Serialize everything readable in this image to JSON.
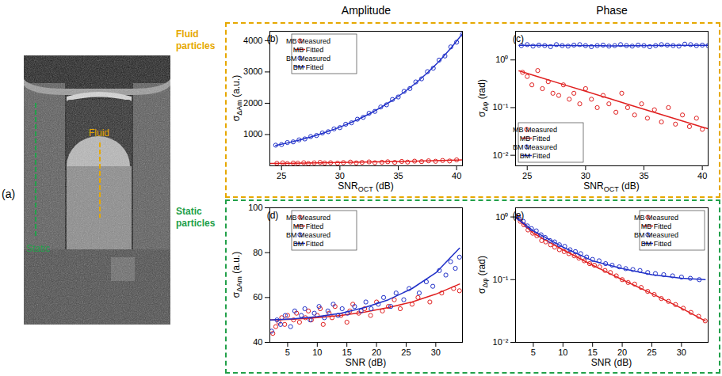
{
  "column_titles": [
    "Amplitude",
    "Phase"
  ],
  "row_labels": [
    {
      "text": "Fluid particles",
      "color": "#e6a800"
    },
    {
      "text": "Static particles",
      "color": "#22a04a"
    }
  ],
  "image_panel": {
    "label": "(a)",
    "markers": [
      {
        "label": "Static",
        "color": "#22a04a"
      },
      {
        "label": "Fluid",
        "color": "#e6a800"
      }
    ]
  },
  "chart_data": [
    {
      "panel": "(b)",
      "type": "scatter",
      "xlabel": {
        "base": "SNR",
        "subscript": "OCT",
        "unit": "(dB)"
      },
      "ylabel": {
        "base": "σ",
        "subscript": "ΔAm",
        "unit": "(a.u.)"
      },
      "xlim": [
        24,
        40.5
      ],
      "xticks": [
        25,
        30,
        35,
        40
      ],
      "ylim": [
        0,
        4300
      ],
      "yticks": [
        1000,
        2000,
        3000,
        4000
      ],
      "legend": "top-left",
      "series": [
        {
          "name": "MB Measured",
          "color": "#e02020",
          "type": "scatter",
          "marker": "circle",
          "x": [
            24.6,
            25.1,
            25.5,
            26.0,
            26.4,
            26.9,
            27.3,
            27.8,
            28.3,
            28.7,
            29.2,
            29.8,
            30.3,
            30.9,
            31.4,
            31.9,
            32.5,
            33.0,
            33.6,
            34.1,
            34.7,
            35.3,
            35.8,
            36.4,
            37.0,
            37.6,
            38.2,
            38.8,
            39.4,
            40.0
          ],
          "values": [
            80,
            95,
            70,
            90,
            85,
            100,
            75,
            95,
            110,
            90,
            100,
            85,
            105,
            120,
            95,
            110,
            125,
            100,
            115,
            130,
            110,
            140,
            120,
            150,
            135,
            160,
            145,
            170,
            155,
            190
          ]
        },
        {
          "name": "MB Fitted",
          "color": "#e02020",
          "type": "line",
          "line_style": "solid",
          "x": [
            24,
            26,
            28,
            30,
            32,
            34,
            36,
            38,
            40,
            40.5
          ],
          "values": [
            75,
            85,
            95,
            105,
            117,
            130,
            145,
            162,
            185,
            192
          ]
        },
        {
          "name": "BM Measured",
          "color": "#2030c8",
          "type": "scatter",
          "marker": "circle",
          "x": [
            24.5,
            25,
            25.5,
            26,
            26.5,
            27,
            27.5,
            28,
            28.5,
            29,
            29.5,
            30,
            30.5,
            31,
            31.5,
            32,
            32.5,
            33,
            33.5,
            34,
            34.5,
            35,
            35.5,
            36,
            36.5,
            37,
            37.5,
            38,
            38.5,
            39,
            39.5,
            40,
            40.5
          ],
          "values": [
            660,
            680,
            745,
            765,
            830,
            860,
            935,
            970,
            1050,
            1090,
            1180,
            1220,
            1330,
            1375,
            1490,
            1550,
            1680,
            1740,
            1880,
            1950,
            2120,
            2200,
            2380,
            2470,
            2680,
            2780,
            3010,
            3120,
            3380,
            3510,
            3800,
            3950,
            4200
          ]
        },
        {
          "name": "BM Fitted",
          "color": "#2030c8",
          "type": "line",
          "line_style": "solid",
          "x": [
            24.5,
            25.5,
            26.5,
            27.5,
            28.5,
            29.5,
            30.5,
            31.5,
            32.5,
            33.5,
            34.5,
            35.5,
            36.5,
            37.5,
            38.5,
            39.5,
            40.5
          ],
          "values": [
            650,
            730,
            821,
            923,
            1037,
            1166,
            1311,
            1473,
            1656,
            1862,
            2093,
            2352,
            2644,
            2972,
            3341,
            3755,
            4221
          ]
        }
      ]
    },
    {
      "panel": "(c)",
      "type": "scatter",
      "xlabel": {
        "base": "SNR",
        "subscript": "OCT",
        "unit": "(dB)"
      },
      "ylabel": {
        "base": "σ",
        "subscript": "Δφ",
        "unit": "(rad)"
      },
      "xlim": [
        24,
        40.5
      ],
      "xticks": [
        25,
        30,
        35,
        40
      ],
      "ylim": [
        0.006,
        4
      ],
      "yticks": [
        {
          "value": 0.01,
          "label": "10⁻²"
        },
        {
          "value": 0.1,
          "label": "10⁻¹"
        },
        {
          "value": 1,
          "label": "10⁰"
        }
      ],
      "log": "y",
      "legend": "bottom-left",
      "series": [
        {
          "name": "MB Measured",
          "color": "#e02020",
          "type": "scatter",
          "marker": "circle",
          "x": [
            24.6,
            25.0,
            25.4,
            25.9,
            26.3,
            26.8,
            27.2,
            27.7,
            28.1,
            28.6,
            29.0,
            29.5,
            30.0,
            30.5,
            31.0,
            31.5,
            32.0,
            32.6,
            33.1,
            33.6,
            34.2,
            34.8,
            35.3,
            35.9,
            36.5,
            37.1,
            37.7,
            38.3,
            38.9,
            39.5,
            40.0
          ],
          "values": [
            0.55,
            0.45,
            0.3,
            0.6,
            0.25,
            0.35,
            0.2,
            0.18,
            0.3,
            0.15,
            0.2,
            0.12,
            0.25,
            0.15,
            0.1,
            0.18,
            0.12,
            0.08,
            0.2,
            0.1,
            0.07,
            0.12,
            0.06,
            0.09,
            0.05,
            0.1,
            0.045,
            0.07,
            0.04,
            0.06,
            0.035
          ]
        },
        {
          "name": "MB Fitted",
          "color": "#e02020",
          "type": "line",
          "line_style": "solid",
          "x": [
            24.3,
            26,
            28,
            30,
            32,
            34,
            36,
            38,
            40,
            40.5
          ],
          "values": [
            0.59,
            0.44,
            0.31,
            0.22,
            0.156,
            0.11,
            0.078,
            0.055,
            0.039,
            0.036
          ]
        },
        {
          "name": "BM Measured",
          "color": "#2030c8",
          "type": "scatter",
          "marker": "circle",
          "x": [
            24.5,
            25,
            25.5,
            26,
            26.5,
            27,
            27.5,
            28,
            28.5,
            29,
            29.5,
            30,
            30.5,
            31,
            31.5,
            32,
            32.5,
            33,
            33.5,
            34,
            34.5,
            35,
            35.5,
            36,
            36.5,
            37,
            37.5,
            38,
            38.5,
            39,
            39.5,
            40,
            40.5
          ],
          "values": [
            2.0,
            2.1,
            1.95,
            2.05,
            2.0,
            1.9,
            2.1,
            2.0,
            1.95,
            2.05,
            2.1,
            2.0,
            1.9,
            2.0,
            2.05,
            1.95,
            2.0,
            2.1,
            2.0,
            1.95,
            2.05,
            2.0,
            1.9,
            2.0,
            2.1,
            2.05,
            2.0,
            1.95,
            2.15,
            2.1,
            2.0,
            2.05,
            2.0
          ]
        },
        {
          "name": "BM Fitted",
          "color": "#2030c8",
          "type": "line",
          "line_style": "solid",
          "x": [
            24.3,
            28,
            32,
            36,
            40.5
          ],
          "values": [
            2.02,
            2.0,
            1.98,
            2.0,
            2.02
          ]
        }
      ]
    },
    {
      "panel": "(d)",
      "type": "scatter",
      "xlabel": {
        "base": "SNR",
        "unit": "(dB)"
      },
      "ylabel": {
        "base": "σ",
        "subscript": "ΔAm",
        "unit": "(a.u.)"
      },
      "xlim": [
        2,
        34.5
      ],
      "xticks": [
        5,
        10,
        15,
        20,
        25,
        30
      ],
      "ylim": [
        40,
        100
      ],
      "yticks": [
        40,
        60,
        80,
        100
      ],
      "legend": "top-left",
      "series": [
        {
          "name": "MB Measured",
          "color": "#e02020",
          "type": "scatter",
          "marker": "circle",
          "x": [
            2.5,
            3,
            3.5,
            4,
            4.5,
            5,
            6,
            6.5,
            7,
            8,
            8.5,
            9,
            10,
            10.5,
            11,
            12,
            12.5,
            13,
            14,
            15,
            15.5,
            16,
            17,
            18,
            19,
            20,
            21,
            22,
            23,
            24,
            26,
            27,
            29,
            31,
            33,
            34
          ],
          "values": [
            44,
            47,
            49,
            51,
            48,
            52,
            50,
            53,
            49,
            51,
            54,
            50,
            52,
            55,
            48,
            53,
            51,
            56,
            52,
            49,
            54,
            57,
            53,
            55,
            52,
            58,
            54,
            56,
            59,
            55,
            57,
            60,
            58,
            62,
            64,
            63
          ]
        },
        {
          "name": "MB Fitted",
          "color": "#e02020",
          "type": "line",
          "line_style": "solid",
          "x": [
            2,
            6,
            10,
            14,
            18,
            22,
            26,
            30,
            34
          ],
          "values": [
            50,
            50.3,
            51,
            52,
            53.5,
            55.5,
            58,
            61.5,
            66
          ]
        },
        {
          "name": "BM Measured",
          "color": "#2030c8",
          "type": "scatter",
          "marker": "circle",
          "x": [
            2.3,
            3.2,
            3.8,
            4.6,
            5.5,
            6.2,
            7.3,
            7.9,
            8.8,
            9.5,
            10.3,
            11.2,
            11.8,
            12.7,
            13.5,
            14.2,
            15.1,
            16.3,
            17.4,
            18.2,
            19.1,
            20.3,
            21.2,
            22.4,
            23.3,
            24.6,
            25.5,
            27.2,
            28.4,
            29.5,
            30.6,
            31.7,
            32.5,
            33.3,
            34
          ],
          "values": [
            45,
            50,
            48,
            52,
            47,
            54,
            52,
            55,
            50,
            53,
            56,
            51,
            54,
            57,
            52,
            55,
            53,
            56,
            54,
            58,
            55,
            57,
            60,
            56,
            62,
            59,
            64,
            62,
            67,
            65,
            72,
            70,
            76,
            73,
            78
          ]
        },
        {
          "name": "BM Fitted",
          "color": "#2030c8",
          "type": "line",
          "line_style": "solid",
          "x": [
            2,
            6,
            10,
            14,
            18,
            22,
            26,
            30,
            34
          ],
          "values": [
            50,
            50.5,
            51.5,
            53,
            55.5,
            59,
            64,
            71,
            82
          ]
        }
      ]
    },
    {
      "panel": "(e)",
      "type": "scatter",
      "xlabel": {
        "base": "SNR",
        "unit": "(dB)"
      },
      "ylabel": {
        "base": "σ",
        "subscript": "Δφ",
        "unit": "(rad)"
      },
      "xlim": [
        2,
        34.5
      ],
      "xticks": [
        5,
        10,
        15,
        20,
        25,
        30
      ],
      "ylim": [
        0.01,
        1.4
      ],
      "yticks": [
        {
          "value": 0.01,
          "label": "10⁻²"
        },
        {
          "value": 0.1,
          "label": "10⁻¹"
        },
        {
          "value": 1,
          "label": "10⁰"
        }
      ],
      "log": "y",
      "legend": "top-right",
      "series": [
        {
          "name": "MB Measured",
          "color": "#e02020",
          "type": "scatter",
          "marker": "circle",
          "x": [
            2.2,
            2.8,
            3.4,
            4.1,
            4.9,
            5.6,
            6.4,
            7.1,
            7.9,
            8.6,
            9.4,
            10.2,
            11.0,
            11.9,
            12.7,
            13.6,
            14.5,
            15.3,
            16.2,
            17.1,
            18.0,
            19.0,
            20.0,
            21.0,
            22.1,
            23.2,
            24.3,
            25.4,
            26.6,
            27.8,
            29.0,
            30.3,
            31.6,
            32.9,
            34.0
          ],
          "values": [
            1.0,
            0.85,
            0.75,
            0.62,
            0.55,
            0.5,
            0.42,
            0.4,
            0.36,
            0.33,
            0.3,
            0.28,
            0.26,
            0.24,
            0.22,
            0.2,
            0.18,
            0.17,
            0.16,
            0.14,
            0.13,
            0.115,
            0.1,
            0.09,
            0.085,
            0.075,
            0.065,
            0.058,
            0.05,
            0.045,
            0.04,
            0.035,
            0.03,
            0.026,
            0.022
          ]
        },
        {
          "name": "MB Fitted",
          "color": "#e02020",
          "type": "line",
          "line_style": "solid",
          "x": [
            2,
            5,
            10,
            15,
            20,
            25,
            30,
            34
          ],
          "values": [
            1.0,
            0.55,
            0.3,
            0.17,
            0.1,
            0.06,
            0.035,
            0.022
          ]
        },
        {
          "name": "BM Measured",
          "color": "#2030c8",
          "type": "scatter",
          "marker": "circle",
          "x": [
            2.0,
            2.6,
            3.3,
            4.0,
            4.7,
            5.5,
            6.3,
            7.0,
            7.8,
            8.6,
            9.4,
            10.3,
            11.2,
            12.1,
            13.0,
            14.0,
            15.0,
            16.1,
            17.2,
            18.3,
            19.5,
            20.6,
            21.8,
            23.0,
            24.3,
            25.6,
            27.0,
            28.5,
            30.0,
            31.5,
            33.0
          ],
          "values": [
            1.05,
            0.95,
            0.85,
            0.72,
            0.65,
            0.6,
            0.52,
            0.47,
            0.42,
            0.4,
            0.36,
            0.34,
            0.3,
            0.28,
            0.26,
            0.23,
            0.21,
            0.2,
            0.18,
            0.17,
            0.16,
            0.15,
            0.145,
            0.14,
            0.13,
            0.125,
            0.12,
            0.115,
            0.11,
            0.105,
            0.1
          ]
        },
        {
          "name": "BM Fitted",
          "color": "#2030c8",
          "type": "line",
          "line_style": "solid",
          "x": [
            2,
            5,
            10,
            15,
            20,
            25,
            30,
            34
          ],
          "values": [
            1.0,
            0.6,
            0.33,
            0.2,
            0.15,
            0.12,
            0.105,
            0.1
          ]
        }
      ]
    }
  ]
}
